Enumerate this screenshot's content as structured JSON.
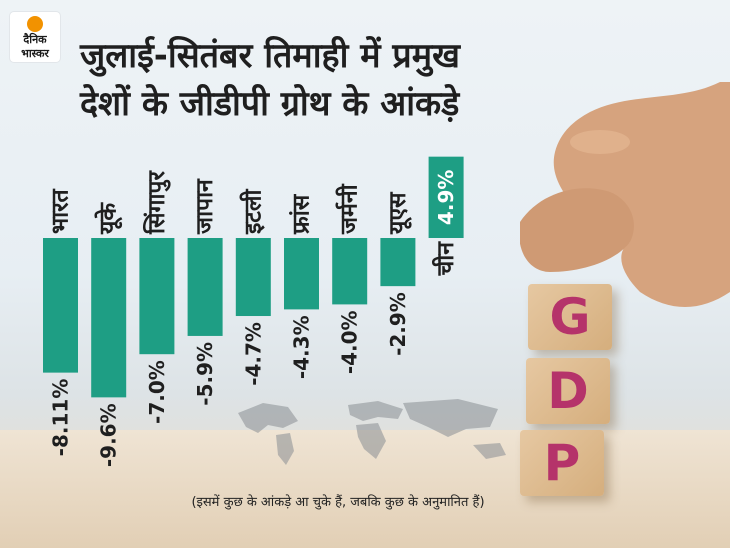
{
  "logo": {
    "line1": "दैनिक",
    "line2": "भास्कर"
  },
  "title_lines": [
    "जुलाई-सितंबर तिमाही में प्रमुख",
    "देशों के जीडीपी ग्रोथ के आंकड़े"
  ],
  "footnote": "(इसमें कुछ के आंकड़े आ चुके हैं, जबकि कुछ के अनुमानित हैं)",
  "cube_letters": [
    "G",
    "D",
    "P"
  ],
  "colors": {
    "bar": "#1e9e84",
    "text": "#1f1f1f",
    "accent": "#b5336a"
  },
  "chart_data": {
    "type": "bar",
    "title": "जुलाई-सितंबर तिमाही में प्रमुख देशों के जीडीपी ग्रोथ के आंकड़े",
    "categories": [
      "भारत",
      "यूके",
      "सिंगापुर",
      "जापान",
      "इटली",
      "फ्रांस",
      "जर्मनी",
      "यूएस",
      "चीन"
    ],
    "values": [
      -8.11,
      -9.6,
      -7.0,
      -5.9,
      -4.7,
      -4.3,
      -4.0,
      -2.9,
      4.9
    ],
    "value_labels": [
      "-8.11%",
      "-9.6%",
      "-7.0%",
      "-5.9%",
      "-4.7%",
      "-4.3%",
      "-4.0%",
      "-2.9%",
      "4.9%"
    ],
    "xlabel": "",
    "ylabel": "",
    "grid": false
  }
}
